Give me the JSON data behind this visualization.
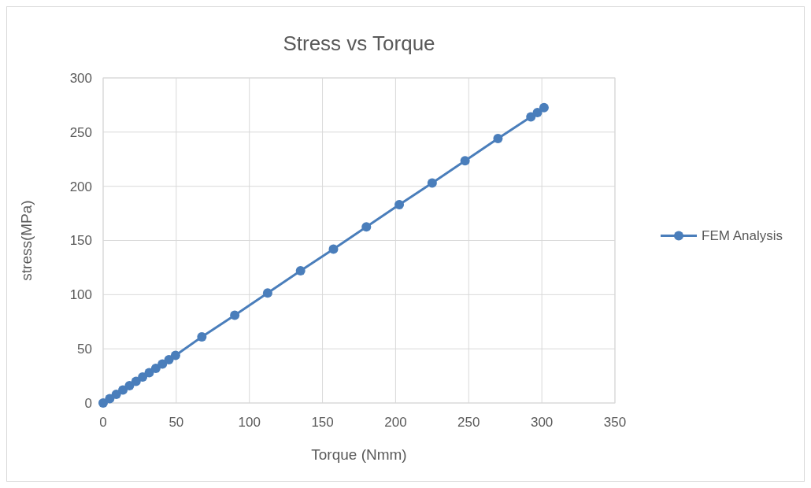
{
  "chart_data": {
    "type": "line",
    "title": "Stress vs Torque",
    "xlabel": "Torque (Nmm)",
    "ylabel": "stress(MPa)",
    "xlim": [
      0,
      350
    ],
    "xticks": [
      0,
      50,
      100,
      150,
      200,
      250,
      300,
      350
    ],
    "ylim": [
      0,
      300
    ],
    "yticks": [
      0,
      50,
      100,
      150,
      200,
      250,
      300
    ],
    "grid": true,
    "legend": "right",
    "marker": "circle",
    "line_style": "solid",
    "series": [
      {
        "name": "FEM Analysis",
        "color": "#4a7ebb",
        "x": [
          0,
          4.5,
          9,
          13.5,
          18,
          22.5,
          27,
          31.5,
          36,
          40.5,
          45,
          49.5,
          67.5,
          90,
          112.5,
          135,
          157.5,
          180,
          202.5,
          225,
          247.5,
          270,
          292.5,
          297,
          301.5
        ],
        "values": [
          0,
          4,
          8,
          12,
          16,
          20,
          24,
          28,
          32,
          36,
          40,
          44,
          61,
          81,
          101.5,
          122,
          142,
          162.5,
          183,
          203,
          223.5,
          244,
          264,
          268,
          272.5
        ]
      }
    ]
  }
}
